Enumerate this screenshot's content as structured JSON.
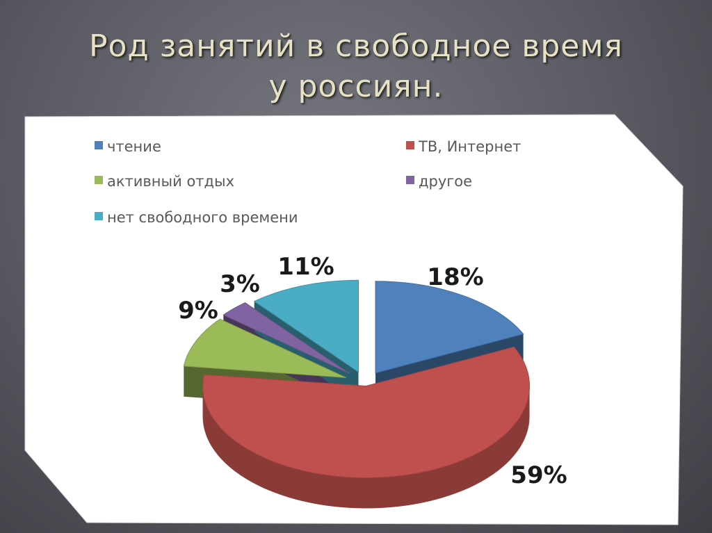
{
  "slide": {
    "title": "Род занятий в  свободное время\nу россиян."
  },
  "colors": {
    "reading": "#4f81bd",
    "tv_internet": "#c0504d",
    "active_rest": "#9bbb59",
    "other": "#8064a2",
    "no_free_time": "#4bacc6"
  },
  "chart_data": {
    "type": "pie",
    "title": "",
    "legend_position": "top",
    "categories": [
      "чтение",
      "ТВ, Интернет",
      "активный отдых",
      "другое",
      "нет свободного времени"
    ],
    "values": [
      18,
      59,
      9,
      3,
      11
    ],
    "labels": [
      "18%",
      "59%",
      "9%",
      "3%",
      "11%"
    ],
    "unit": "%"
  }
}
